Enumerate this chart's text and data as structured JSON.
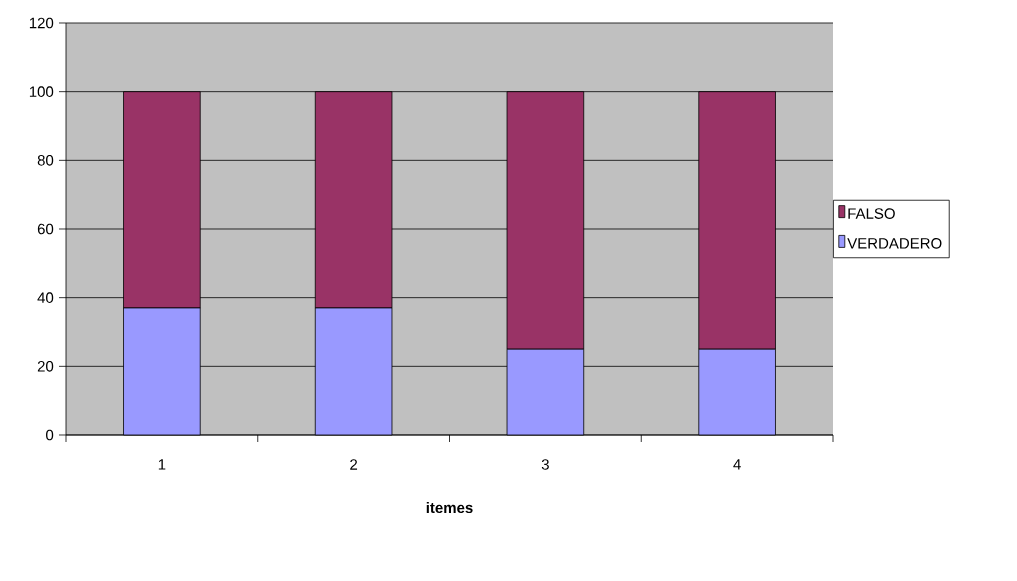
{
  "chart_data": {
    "type": "bar",
    "stacked": true,
    "xlabel": "itemes",
    "categories": [
      "1",
      "2",
      "3",
      "4"
    ],
    "series": [
      {
        "name": "VERDADERO",
        "color": "#9999ff",
        "values": [
          37,
          37,
          25,
          25
        ]
      },
      {
        "name": "FALSO",
        "color": "#993366",
        "values": [
          63,
          63,
          75,
          75
        ]
      }
    ],
    "ylim": [
      0,
      120
    ],
    "yticks": [
      0,
      20,
      40,
      60,
      80,
      100,
      120
    ],
    "grid": "y",
    "legend": "right"
  }
}
